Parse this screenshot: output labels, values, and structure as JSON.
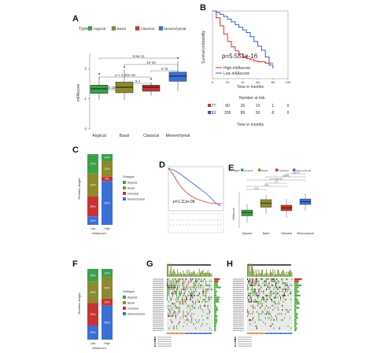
{
  "panels": {
    "a": {
      "letter": "A",
      "legend_title": "Type",
      "legend_items": [
        {
          "label": "Atypical",
          "color": "#3aa14a"
        },
        {
          "label": "Basal",
          "color": "#8c8a2e"
        },
        {
          "label": "Classical",
          "color": "#c83232"
        },
        {
          "label": "Mesenchymal",
          "color": "#3a6fd6"
        }
      ],
      "ylabel": "m6Ascore",
      "yticks": [
        "0",
        "1",
        "2"
      ],
      "comparisons": [
        "5.5e-11",
        "1e-16",
        "0.76",
        "p < 2.22e-16",
        "0.4",
        "0.18"
      ],
      "boxes": [
        {
          "name": "Atypical",
          "q1": 1.18,
          "median": 1.33,
          "q3": 1.45,
          "lo": 0.95,
          "hi": 1.72,
          "color": "#3aa14a"
        },
        {
          "name": "Basal",
          "q1": 1.2,
          "median": 1.38,
          "q3": 1.55,
          "lo": 0.95,
          "hi": 1.95,
          "color": "#8c8a2e"
        },
        {
          "name": "Classical",
          "q1": 1.25,
          "median": 1.38,
          "q3": 1.45,
          "lo": 1.1,
          "hi": 1.55,
          "color": "#c83232"
        },
        {
          "name": "Mesenchymal",
          "q1": 1.58,
          "median": 1.75,
          "q3": 1.88,
          "lo": 1.25,
          "hi": 2.25,
          "color": "#3a6fd6"
        }
      ]
    },
    "b": {
      "letter": "B",
      "ylabel": "Survival probability",
      "xlabel": "Time in months",
      "pvalue": "p=5.551e-16",
      "legend": [
        "High m6Ascore",
        "Low m6Ascore"
      ],
      "xticks": [
        "0",
        "20",
        "40",
        "60",
        "80",
        "100"
      ],
      "yticks": [
        "0.0",
        "0.25",
        "0.50",
        "0.75",
        "1.00"
      ],
      "risk_title": "Number at risk",
      "risk_rows": [
        {
          "color": "#e03030",
          "values": [
            "177",
            "60",
            "26",
            "10",
            "1",
            "0"
          ]
        },
        {
          "color": "#3a5fd6",
          "values": [
            "293",
            "206",
            "89",
            "50",
            "8",
            "0"
          ]
        }
      ],
      "risk_xlabel": "Time in months",
      "curves": [
        {
          "name": "High m6Ascore",
          "color": "#e03030",
          "points": [
            [
              0,
              1
            ],
            [
              5,
              0.9
            ],
            [
              10,
              0.78
            ],
            [
              15,
              0.66
            ],
            [
              20,
              0.55
            ],
            [
              25,
              0.47
            ],
            [
              30,
              0.41
            ],
            [
              35,
              0.36
            ],
            [
              40,
              0.32
            ],
            [
              45,
              0.3
            ],
            [
              50,
              0.28
            ],
            [
              55,
              0.26
            ],
            [
              60,
              0.25
            ],
            [
              70,
              0.23
            ],
            [
              80,
              0.23
            ]
          ]
        },
        {
          "name": "Low m6Ascore",
          "color": "#3a5fd6",
          "points": [
            [
              0,
              1
            ],
            [
              5,
              0.98
            ],
            [
              10,
              0.95
            ],
            [
              15,
              0.92
            ],
            [
              20,
              0.88
            ],
            [
              25,
              0.84
            ],
            [
              30,
              0.8
            ],
            [
              35,
              0.76
            ],
            [
              40,
              0.72
            ],
            [
              45,
              0.68
            ],
            [
              50,
              0.62
            ],
            [
              55,
              0.55
            ],
            [
              60,
              0.48
            ],
            [
              65,
              0.42
            ],
            [
              70,
              0.32
            ],
            [
              75,
              0.2
            ],
            [
              80,
              0.15
            ]
          ]
        }
      ]
    },
    "c": {
      "letter": "C",
      "ylabel": "Relative weight",
      "xlabel": "m6Ascore",
      "xticks": [
        "Low",
        "High"
      ],
      "legend_title": "Subtype",
      "legend_items": [
        {
          "label": "Atypical",
          "color": "#3aa14a"
        },
        {
          "label": "Basal",
          "color": "#8c8a2e"
        },
        {
          "label": "Classical",
          "color": "#c83232"
        },
        {
          "label": "Mesenchymal",
          "color": "#3a6fd6"
        }
      ],
      "bars": [
        {
          "name": "Low",
          "segments": [
            0.27,
            0.33,
            0.28,
            0.12
          ],
          "labels": [
            "27%",
            "33%",
            "28%",
            "12%"
          ]
        },
        {
          "name": "High",
          "segments": [
            0.1,
            0.22,
            0.06,
            0.62
          ],
          "labels": [
            "10%",
            "22%",
            "6%",
            "62%"
          ]
        }
      ]
    },
    "d": {
      "letter": "D",
      "pvalue": "p=1.111e-08"
    },
    "e": {
      "letter": "E",
      "legend_title": "Type",
      "legend_items": [
        {
          "label": "Atypical",
          "color": "#3aa14a"
        },
        {
          "label": "Basal",
          "color": "#8c8a2e"
        },
        {
          "label": "Classical",
          "color": "#c83232"
        },
        {
          "label": "Mesenchymal",
          "color": "#3a6fd6"
        }
      ],
      "ylabel": "m6Ascore",
      "comparisons": [
        "1.2e-07",
        "0.0049",
        "p = 2.22e-16",
        "0.7",
        "0.01",
        "0.11"
      ],
      "boxes": [
        {
          "name": "Atypical",
          "q1": 0.35,
          "median": 0.45,
          "q3": 0.52,
          "lo": 0.15,
          "hi": 0.7,
          "color": "#3aa14a"
        },
        {
          "name": "Basal",
          "q1": 0.6,
          "median": 0.72,
          "q3": 0.82,
          "lo": 0.4,
          "hi": 0.95,
          "color": "#8c8a2e"
        },
        {
          "name": "Classical",
          "q1": 0.5,
          "median": 0.58,
          "q3": 0.66,
          "lo": 0.3,
          "hi": 0.85,
          "color": "#c83232"
        },
        {
          "name": "Mesenchymal",
          "q1": 0.68,
          "median": 0.76,
          "q3": 0.84,
          "lo": 0.5,
          "hi": 1.0,
          "color": "#3a6fd6"
        }
      ]
    },
    "f": {
      "letter": "F",
      "ylabel": "Relative weight",
      "xlabel": "m6Ascore",
      "xticks": [
        "Low",
        "High"
      ],
      "legend_title": "Subtype",
      "legend_items": [
        {
          "label": "Atypical",
          "color": "#3aa14a"
        },
        {
          "label": "Basal",
          "color": "#8c8a2e"
        },
        {
          "label": "Classical",
          "color": "#c83232"
        },
        {
          "label": "Mesenchymal",
          "color": "#3a6fd6"
        }
      ],
      "bars": [
        {
          "name": "Low",
          "segments": [
            0.18,
            0.3,
            0.32,
            0.2
          ],
          "labels": [
            "18%",
            "30%",
            "32%",
            "20%"
          ]
        },
        {
          "name": "High",
          "segments": [
            0.12,
            0.3,
            0.1,
            0.48
          ],
          "labels": [
            "12%",
            "30%",
            "10%",
            "48%"
          ]
        }
      ]
    },
    "g": {
      "letter": "G"
    },
    "h": {
      "letter": "H"
    }
  }
}
